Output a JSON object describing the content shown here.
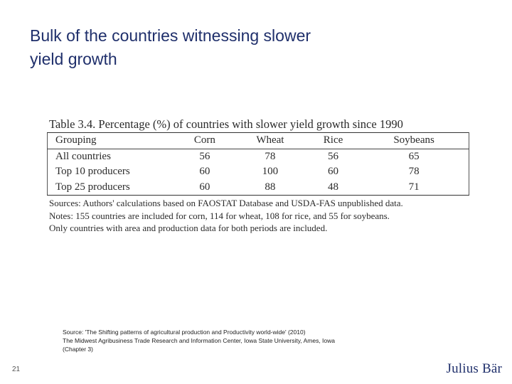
{
  "slide": {
    "title_line1": "Bulk of the countries witnessing slower",
    "title_line2": "yield growth",
    "page_number": "21",
    "logo_text": "Julius Bär"
  },
  "table": {
    "caption": "Table 3.4. Percentage (%) of countries with slower yield growth since 1990",
    "headers": [
      "Grouping",
      "Corn",
      "Wheat",
      "Rice",
      "Soybeans"
    ],
    "rows": [
      [
        "All countries",
        "56",
        "78",
        "56",
        "65"
      ],
      [
        "Top 10 producers",
        "60",
        "100",
        "60",
        "78"
      ],
      [
        "Top 25 producers",
        "60",
        "88",
        "48",
        "71"
      ]
    ],
    "notes": [
      "Sources: Authors' calculations based on FAOSTAT Database and USDA-FAS unpublished data.",
      "Notes: 155 countries are included for corn, 114 for wheat, 108 for rice, and 55 for soybeans.",
      "Only countries with area and production data for both periods are included."
    ]
  },
  "source": {
    "line1": "Source: 'The Shifting patterns of agricultural production and Productivity world-wide' (2010)",
    "line2": "The Midwest Agribusiness Trade Research and Information Center,  Iowa State University, Ames, Iowa",
    "line3": "(Chapter 3)"
  },
  "colors": {
    "title": "#1f2f6b",
    "logo": "#1f2f6b"
  }
}
